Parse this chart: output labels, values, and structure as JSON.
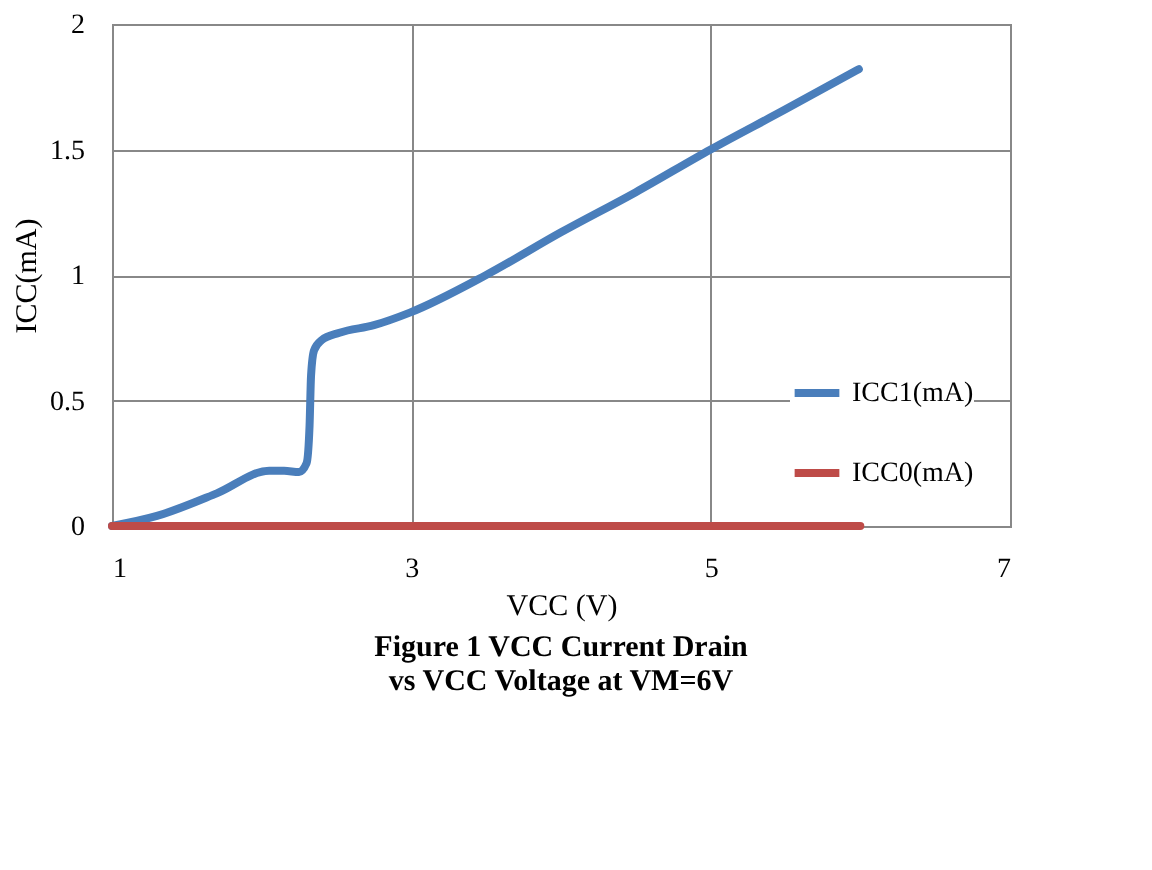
{
  "chart_data": {
    "type": "line",
    "title": "Figure 1  VCC Current Drain\nvs VCC Voltage   at VM=6V",
    "xlabel": "VCC (V)",
    "ylabel": "ICC(mA)",
    "xlim": [
      1,
      7
    ],
    "xticks": [
      1,
      3,
      5,
      7
    ],
    "ylim": [
      0,
      2
    ],
    "yticks": [
      0,
      0.5,
      1,
      1.5,
      2
    ],
    "grid": true,
    "legend": "bottom right",
    "marker": "none",
    "line_style": "solid",
    "series": [
      {
        "name": "ICC1(mA)",
        "color": "#4a7ebb",
        "x": [
          1,
          1.3,
          1.7,
          2.05,
          2.15,
          2.25,
          2.3,
          2.32,
          2.33,
          2.35,
          2.4,
          2.52,
          2.75,
          2.99,
          3.5,
          4,
          4.5,
          5,
          5.5,
          5.99
        ],
        "values": [
          0,
          0.04,
          0.13,
          0.22,
          0.22,
          0.215,
          0.25,
          0.4,
          0.6,
          0.7,
          0.74,
          0.77,
          0.8,
          0.85,
          1.0,
          1.17,
          1.33,
          1.5,
          1.66,
          1.82
        ]
      },
      {
        "name": "ICC0(mA)",
        "color": "#be4b48",
        "x": [
          1,
          6
        ],
        "values": [
          0,
          0
        ]
      }
    ]
  }
}
